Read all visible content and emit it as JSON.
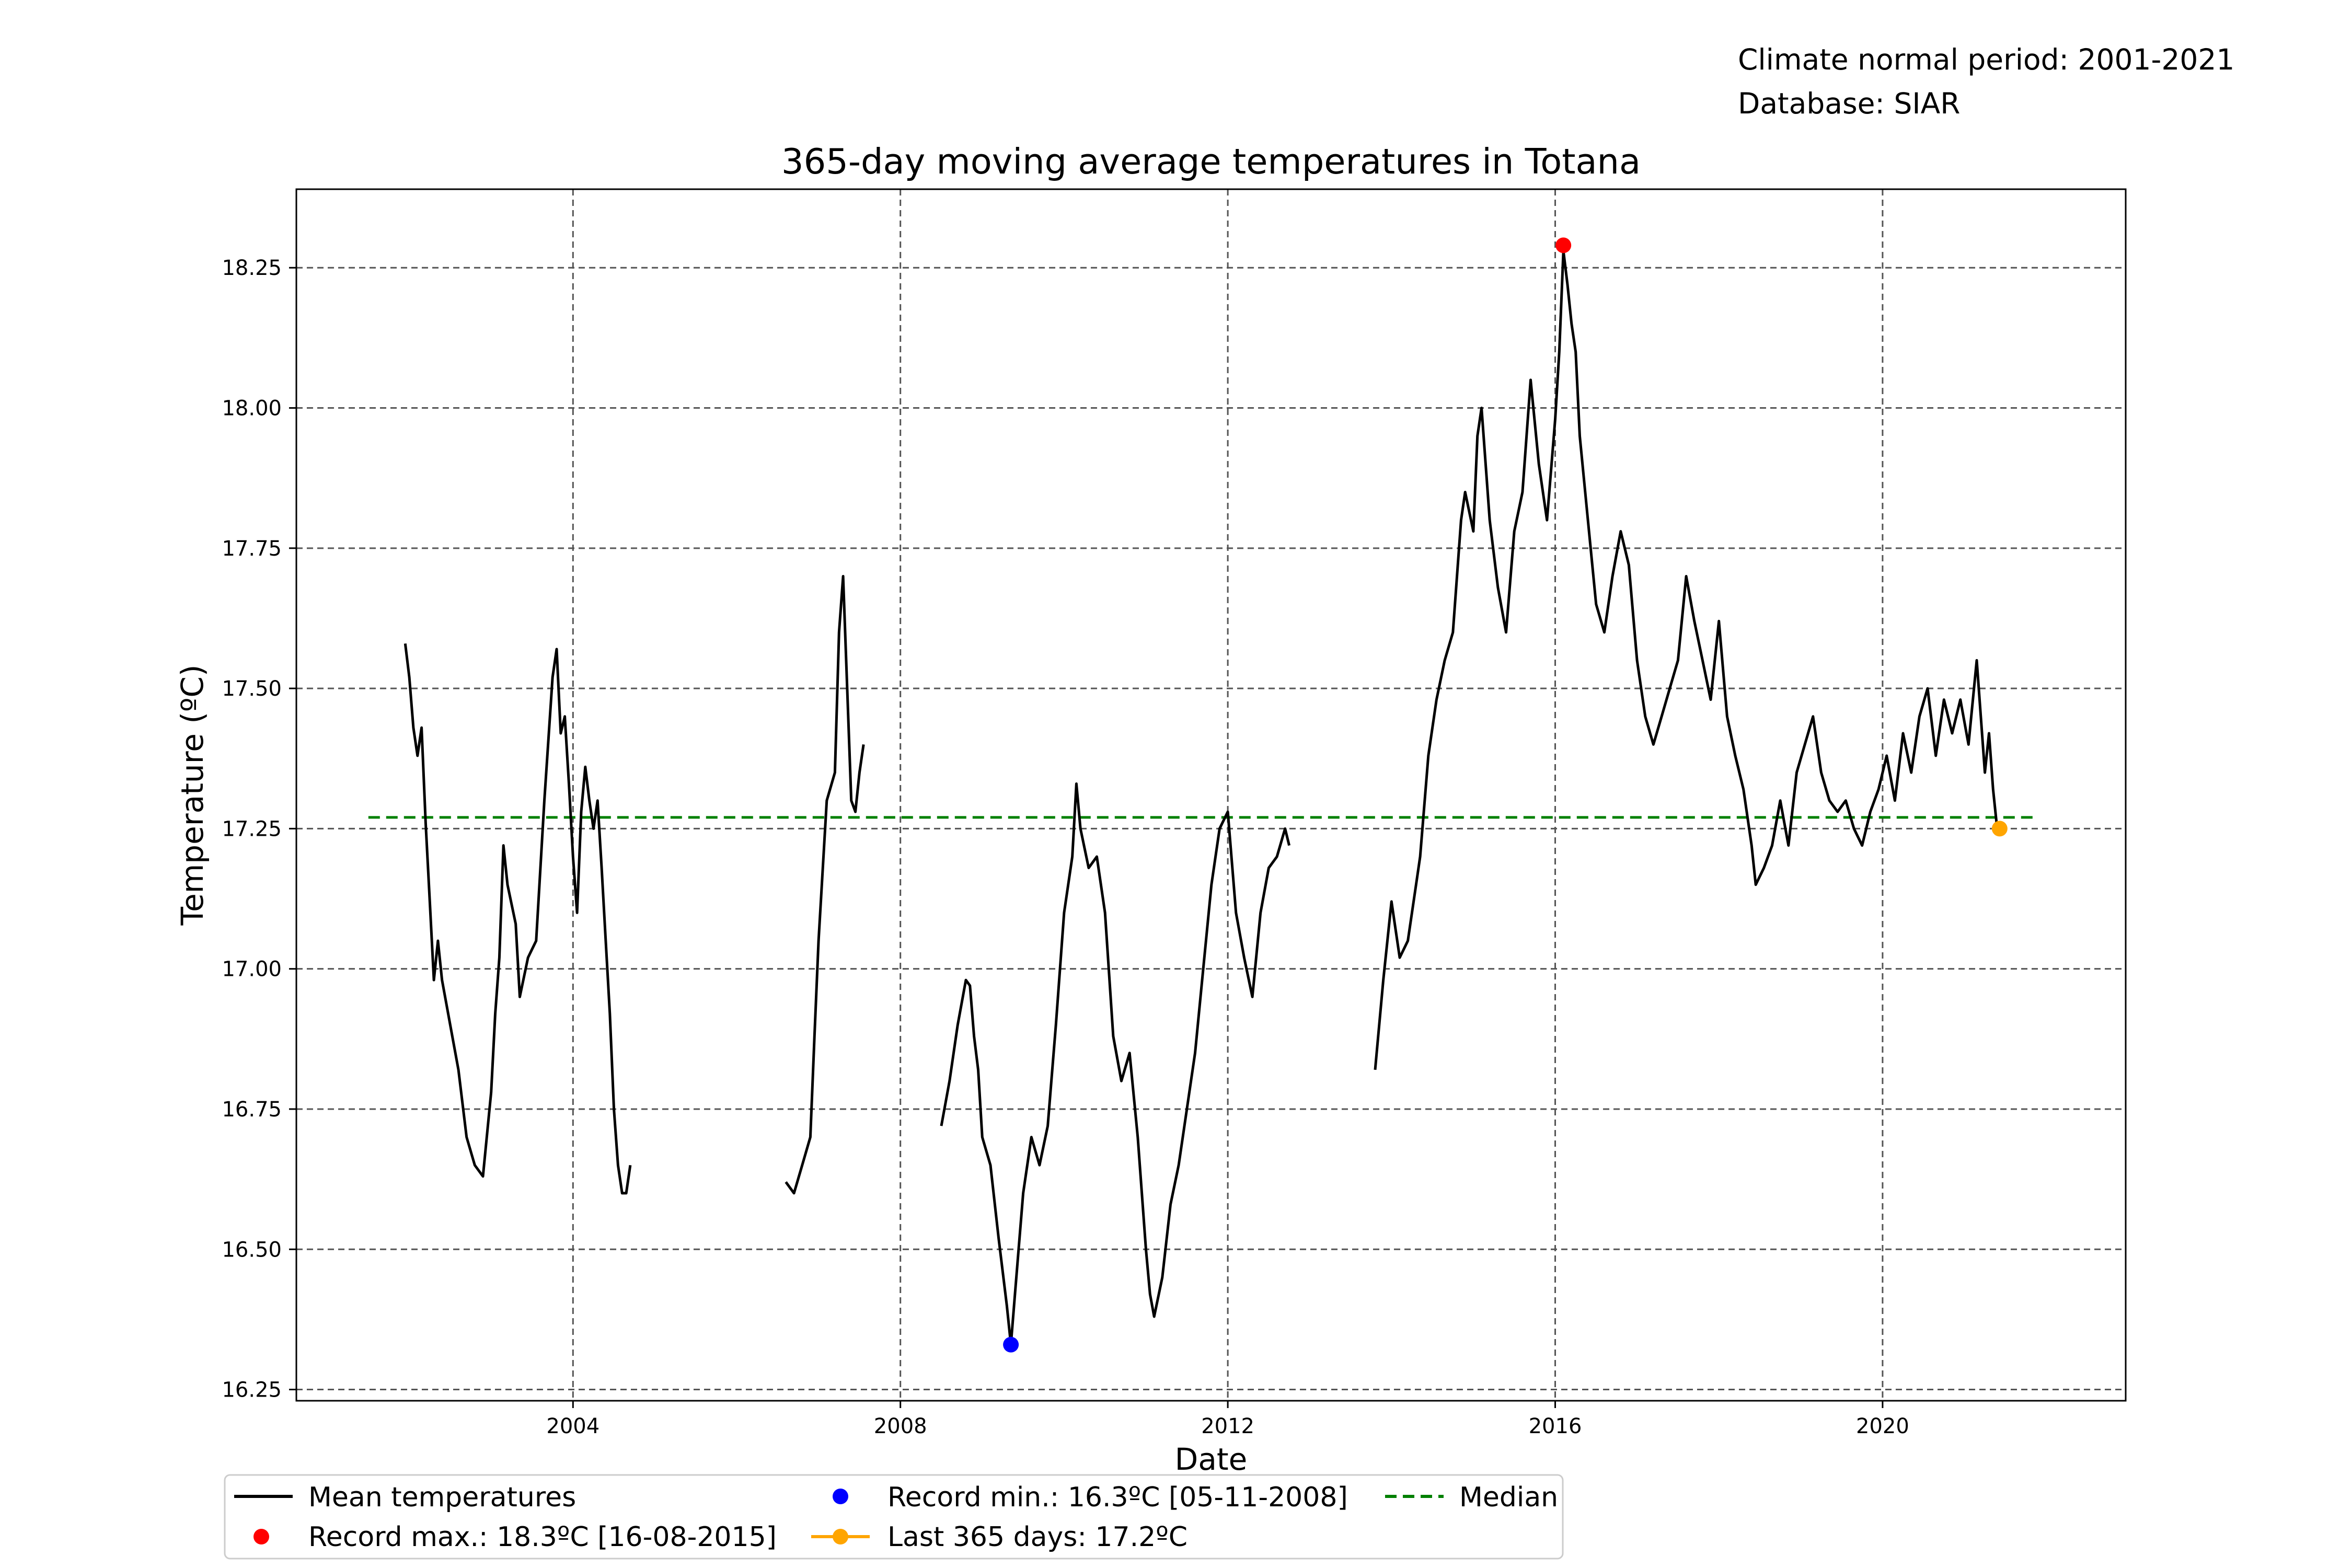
{
  "meta": {
    "climate_normal": "Climate normal period: 2001-2021",
    "database": "Database: SIAR"
  },
  "colors": {
    "mean": "#000000",
    "record_max": "#ff0000",
    "record_min": "#0000ff",
    "last_365": "#ffa500",
    "median": "#008000",
    "grid": "#555555"
  },
  "chart_data": {
    "type": "line",
    "title": "365-day moving average temperatures in Totana",
    "xlabel": "Date",
    "ylabel": "Temperature (ºC)",
    "xlim": [
      2000.62,
      2022.97
    ],
    "ylim": [
      16.23,
      18.39
    ],
    "xticks": [
      2004,
      2008,
      2012,
      2016,
      2020
    ],
    "yticks": [
      "16.25",
      "16.50",
      "16.75",
      "17.00",
      "17.25",
      "17.50",
      "17.75",
      "18.00",
      "18.25"
    ],
    "grid": true,
    "legend_position": "bottom-center",
    "series": [
      {
        "name": "Mean temperatures",
        "segments": [
          [
            [
              2001.95,
              17.58
            ],
            [
              2002.0,
              17.52
            ],
            [
              2002.05,
              17.43
            ],
            [
              2002.1,
              17.38
            ],
            [
              2002.15,
              17.43
            ],
            [
              2002.2,
              17.26
            ],
            [
              2002.25,
              17.12
            ],
            [
              2002.3,
              16.98
            ],
            [
              2002.35,
              17.05
            ],
            [
              2002.4,
              16.98
            ],
            [
              2002.5,
              16.9
            ],
            [
              2002.6,
              16.82
            ],
            [
              2002.7,
              16.7
            ],
            [
              2002.8,
              16.65
            ],
            [
              2002.9,
              16.63
            ],
            [
              2003.0,
              16.78
            ],
            [
              2003.05,
              16.92
            ],
            [
              2003.1,
              17.02
            ],
            [
              2003.15,
              17.22
            ],
            [
              2003.2,
              17.15
            ],
            [
              2003.3,
              17.08
            ],
            [
              2003.35,
              16.95
            ],
            [
              2003.45,
              17.02
            ],
            [
              2003.55,
              17.05
            ],
            [
              2003.65,
              17.3
            ],
            [
              2003.75,
              17.52
            ],
            [
              2003.8,
              17.57
            ],
            [
              2003.85,
              17.42
            ],
            [
              2003.9,
              17.45
            ],
            [
              2003.95,
              17.33
            ],
            [
              2004.0,
              17.2
            ],
            [
              2004.05,
              17.1
            ],
            [
              2004.1,
              17.28
            ],
            [
              2004.15,
              17.36
            ],
            [
              2004.2,
              17.3
            ],
            [
              2004.25,
              17.25
            ],
            [
              2004.3,
              17.3
            ],
            [
              2004.35,
              17.18
            ],
            [
              2004.4,
              17.05
            ],
            [
              2004.45,
              16.92
            ],
            [
              2004.5,
              16.75
            ],
            [
              2004.55,
              16.65
            ],
            [
              2004.6,
              16.6
            ],
            [
              2004.65,
              16.6
            ],
            [
              2004.7,
              16.65
            ]
          ],
          [
            [
              2006.6,
              16.62
            ],
            [
              2006.7,
              16.6
            ],
            [
              2006.8,
              16.65
            ],
            [
              2006.9,
              16.7
            ],
            [
              2006.95,
              16.88
            ],
            [
              2007.0,
              17.05
            ],
            [
              2007.1,
              17.3
            ],
            [
              2007.2,
              17.35
            ],
            [
              2007.25,
              17.6
            ],
            [
              2007.3,
              17.7
            ],
            [
              2007.35,
              17.5
            ],
            [
              2007.4,
              17.3
            ],
            [
              2007.45,
              17.28
            ],
            [
              2007.5,
              17.35
            ],
            [
              2007.55,
              17.4
            ]
          ],
          [
            [
              2008.5,
              16.72
            ],
            [
              2008.6,
              16.8
            ],
            [
              2008.7,
              16.9
            ],
            [
              2008.8,
              16.98
            ],
            [
              2008.85,
              16.97
            ],
            [
              2008.9,
              16.88
            ],
            [
              2008.95,
              16.82
            ],
            [
              2009.0,
              16.7
            ],
            [
              2009.1,
              16.65
            ],
            [
              2009.2,
              16.52
            ],
            [
              2009.3,
              16.4
            ],
            [
              2009.35,
              16.33
            ],
            [
              2009.4,
              16.42
            ],
            [
              2009.5,
              16.6
            ],
            [
              2009.6,
              16.7
            ],
            [
              2009.7,
              16.65
            ],
            [
              2009.8,
              16.72
            ],
            [
              2009.9,
              16.9
            ],
            [
              2010.0,
              17.1
            ],
            [
              2010.1,
              17.2
            ],
            [
              2010.15,
              17.33
            ],
            [
              2010.2,
              17.25
            ],
            [
              2010.3,
              17.18
            ],
            [
              2010.4,
              17.2
            ],
            [
              2010.5,
              17.1
            ],
            [
              2010.6,
              16.88
            ],
            [
              2010.7,
              16.8
            ],
            [
              2010.8,
              16.85
            ],
            [
              2010.9,
              16.7
            ],
            [
              2011.0,
              16.5
            ],
            [
              2011.05,
              16.42
            ],
            [
              2011.1,
              16.38
            ],
            [
              2011.2,
              16.45
            ],
            [
              2011.3,
              16.58
            ],
            [
              2011.4,
              16.65
            ],
            [
              2011.5,
              16.75
            ],
            [
              2011.6,
              16.85
            ],
            [
              2011.7,
              17.0
            ],
            [
              2011.8,
              17.15
            ],
            [
              2011.9,
              17.25
            ],
            [
              2012.0,
              17.28
            ],
            [
              2012.1,
              17.1
            ],
            [
              2012.2,
              17.02
            ],
            [
              2012.3,
              16.95
            ],
            [
              2012.4,
              17.1
            ],
            [
              2012.5,
              17.18
            ],
            [
              2012.6,
              17.2
            ],
            [
              2012.7,
              17.25
            ],
            [
              2012.75,
              17.22
            ]
          ],
          [
            [
              2013.8,
              16.82
            ],
            [
              2013.9,
              16.98
            ],
            [
              2014.0,
              17.12
            ],
            [
              2014.1,
              17.02
            ],
            [
              2014.2,
              17.05
            ],
            [
              2014.3,
              17.15
            ],
            [
              2014.35,
              17.2
            ],
            [
              2014.45,
              17.38
            ],
            [
              2014.55,
              17.48
            ],
            [
              2014.65,
              17.55
            ],
            [
              2014.75,
              17.6
            ],
            [
              2014.85,
              17.8
            ],
            [
              2014.9,
              17.85
            ],
            [
              2015.0,
              17.78
            ],
            [
              2015.05,
              17.95
            ],
            [
              2015.1,
              18.0
            ],
            [
              2015.15,
              17.9
            ],
            [
              2015.2,
              17.8
            ],
            [
              2015.3,
              17.68
            ],
            [
              2015.4,
              17.6
            ],
            [
              2015.5,
              17.78
            ],
            [
              2015.6,
              17.85
            ],
            [
              2015.7,
              18.05
            ],
            [
              2015.8,
              17.9
            ],
            [
              2015.9,
              17.8
            ],
            [
              2016.0,
              17.98
            ],
            [
              2016.05,
              18.1
            ],
            [
              2016.1,
              18.28
            ],
            [
              2016.15,
              18.22
            ],
            [
              2016.2,
              18.15
            ],
            [
              2016.25,
              18.1
            ],
            [
              2016.3,
              17.95
            ],
            [
              2016.4,
              17.8
            ],
            [
              2016.5,
              17.65
            ],
            [
              2016.6,
              17.6
            ],
            [
              2016.7,
              17.7
            ],
            [
              2016.8,
              17.78
            ],
            [
              2016.9,
              17.72
            ],
            [
              2017.0,
              17.55
            ],
            [
              2017.1,
              17.45
            ],
            [
              2017.2,
              17.4
            ],
            [
              2017.3,
              17.45
            ],
            [
              2017.4,
              17.5
            ],
            [
              2017.5,
              17.55
            ],
            [
              2017.6,
              17.7
            ],
            [
              2017.7,
              17.62
            ],
            [
              2017.8,
              17.55
            ],
            [
              2017.9,
              17.48
            ],
            [
              2018.0,
              17.62
            ],
            [
              2018.1,
              17.45
            ],
            [
              2018.2,
              17.38
            ],
            [
              2018.3,
              17.32
            ],
            [
              2018.4,
              17.22
            ],
            [
              2018.45,
              17.15
            ],
            [
              2018.55,
              17.18
            ],
            [
              2018.65,
              17.22
            ],
            [
              2018.75,
              17.3
            ],
            [
              2018.85,
              17.22
            ],
            [
              2018.95,
              17.35
            ],
            [
              2019.05,
              17.4
            ],
            [
              2019.15,
              17.45
            ],
            [
              2019.25,
              17.35
            ],
            [
              2019.35,
              17.3
            ],
            [
              2019.45,
              17.28
            ],
            [
              2019.55,
              17.3
            ],
            [
              2019.65,
              17.25
            ],
            [
              2019.75,
              17.22
            ],
            [
              2019.85,
              17.28
            ],
            [
              2019.95,
              17.32
            ],
            [
              2020.05,
              17.38
            ],
            [
              2020.15,
              17.3
            ],
            [
              2020.25,
              17.42
            ],
            [
              2020.35,
              17.35
            ],
            [
              2020.45,
              17.45
            ],
            [
              2020.55,
              17.5
            ],
            [
              2020.65,
              17.38
            ],
            [
              2020.75,
              17.48
            ],
            [
              2020.85,
              17.42
            ],
            [
              2020.95,
              17.48
            ],
            [
              2021.05,
              17.4
            ],
            [
              2021.15,
              17.55
            ],
            [
              2021.2,
              17.45
            ],
            [
              2021.25,
              17.35
            ],
            [
              2021.3,
              17.42
            ],
            [
              2021.35,
              17.32
            ],
            [
              2021.4,
              17.25
            ]
          ]
        ]
      }
    ],
    "record_max": {
      "label": "Record max.: 18.3ºC [16-08-2015]",
      "x": 2016.1,
      "y": 18.29
    },
    "record_min": {
      "label": "Record min.: 16.3ºC [05-11-2008]",
      "x": 2009.35,
      "y": 16.33
    },
    "last_365": {
      "label": "Last 365 days: 17.2ºC",
      "x": 2021.43,
      "y": 17.25
    },
    "median": {
      "label": "Median",
      "value": 17.27,
      "x_start": 2001.5,
      "x_end": 2021.9
    }
  }
}
